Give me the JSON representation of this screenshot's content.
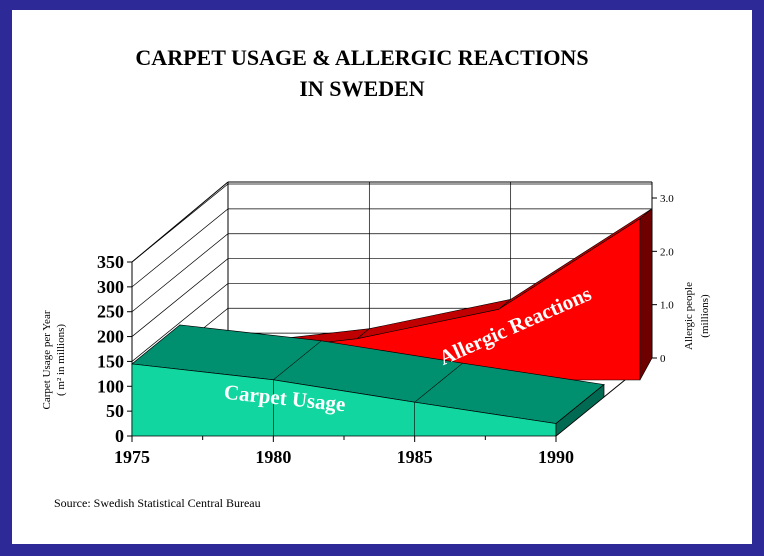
{
  "chart_data": {
    "type": "area",
    "title": "CARPET USAGE & ALLERGIC REACTIONS",
    "subtitle": "IN SWEDEN",
    "x": [
      1975,
      1980,
      1985,
      1990
    ],
    "x_ticks": [
      "1975",
      "1980",
      "1985",
      "1990"
    ],
    "ylabel": "Carpet Usage per Year",
    "ylabel_units": "( m² in millions)",
    "ylim": [
      0,
      350
    ],
    "y_ticks": [
      "0",
      "50",
      "100",
      "150",
      "200",
      "250",
      "300",
      "350"
    ],
    "y2label": "Allergic people",
    "y2label_units": "(millions)",
    "y2_ticks": [
      "0",
      "1.0",
      "2.0",
      "3.0"
    ],
    "grid": true,
    "three_d": true,
    "series": [
      {
        "name": "Carpet Usage",
        "axis": "left",
        "values": [
          145,
          113,
          68,
          25
        ],
        "color": "#12d6a0"
      },
      {
        "name": "Allergic Reactions",
        "axis": "right",
        "values": [
          0.25,
          0.55,
          1.1,
          2.8
        ],
        "color": "#ff0000"
      }
    ]
  },
  "source": "Source:  Swedish Statistical Central Bureau"
}
